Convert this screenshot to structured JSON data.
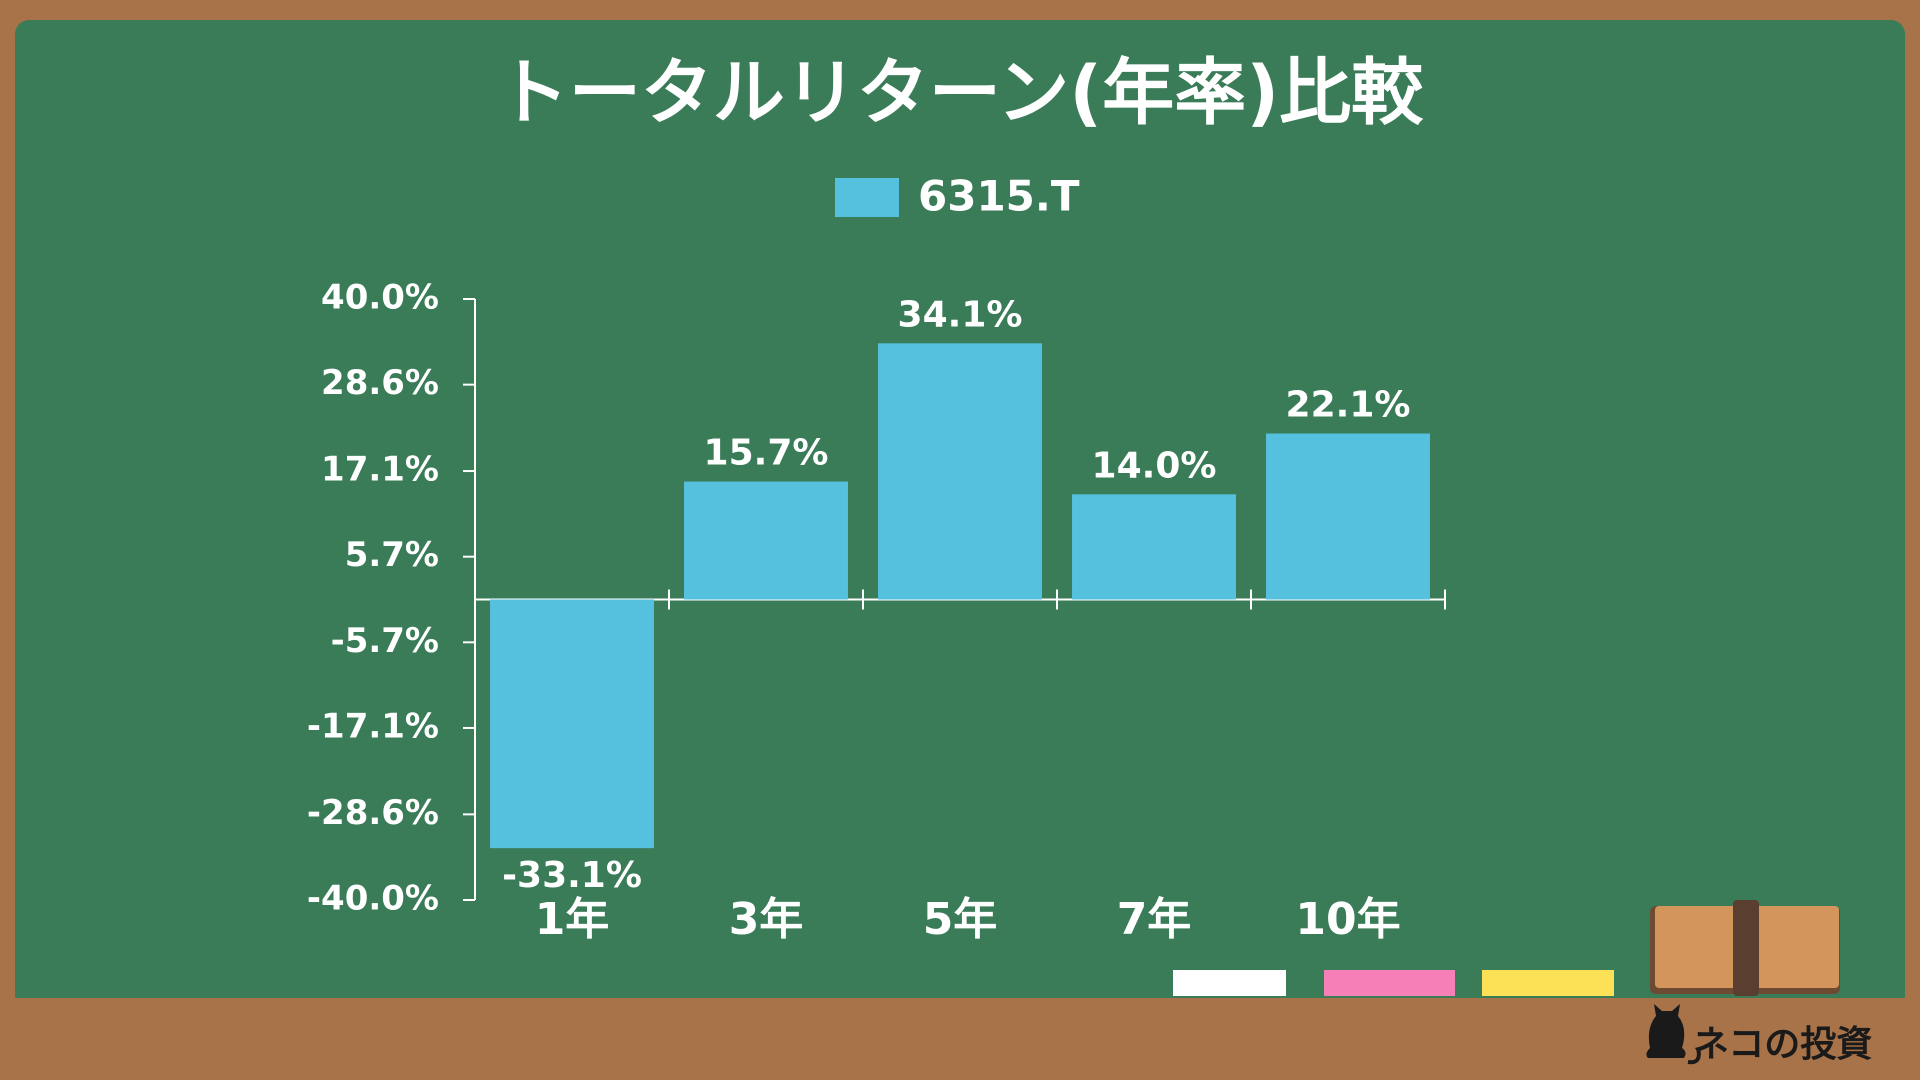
{
  "chart_data": {
    "type": "bar",
    "title": "トータルリターン(年率)比較",
    "categories": [
      "1年",
      "3年",
      "5年",
      "7年",
      "10年"
    ],
    "series": [
      {
        "name": "6315.T",
        "color": "#56C1DE",
        "values": [
          -33.1,
          15.7,
          34.1,
          14.0,
          22.1
        ],
        "value_labels": [
          "-33.1%",
          "15.7%",
          "34.1%",
          "14.0%",
          "22.1%"
        ]
      }
    ],
    "ylim": [
      -40,
      40
    ],
    "yticks": [
      {
        "value": -40,
        "label": "-40.0%"
      },
      {
        "value": -28.6,
        "label": "-28.6%"
      },
      {
        "value": -17.1,
        "label": "-17.1%"
      },
      {
        "value": -5.7,
        "label": "-5.7%"
      },
      {
        "value": 5.7,
        "label": "5.7%"
      },
      {
        "value": 17.1,
        "label": "17.1%"
      },
      {
        "value": 28.6,
        "label": "28.6%"
      },
      {
        "value": 40,
        "label": "40.0%"
      }
    ],
    "grid": false
  },
  "brand": "ネコの投資"
}
